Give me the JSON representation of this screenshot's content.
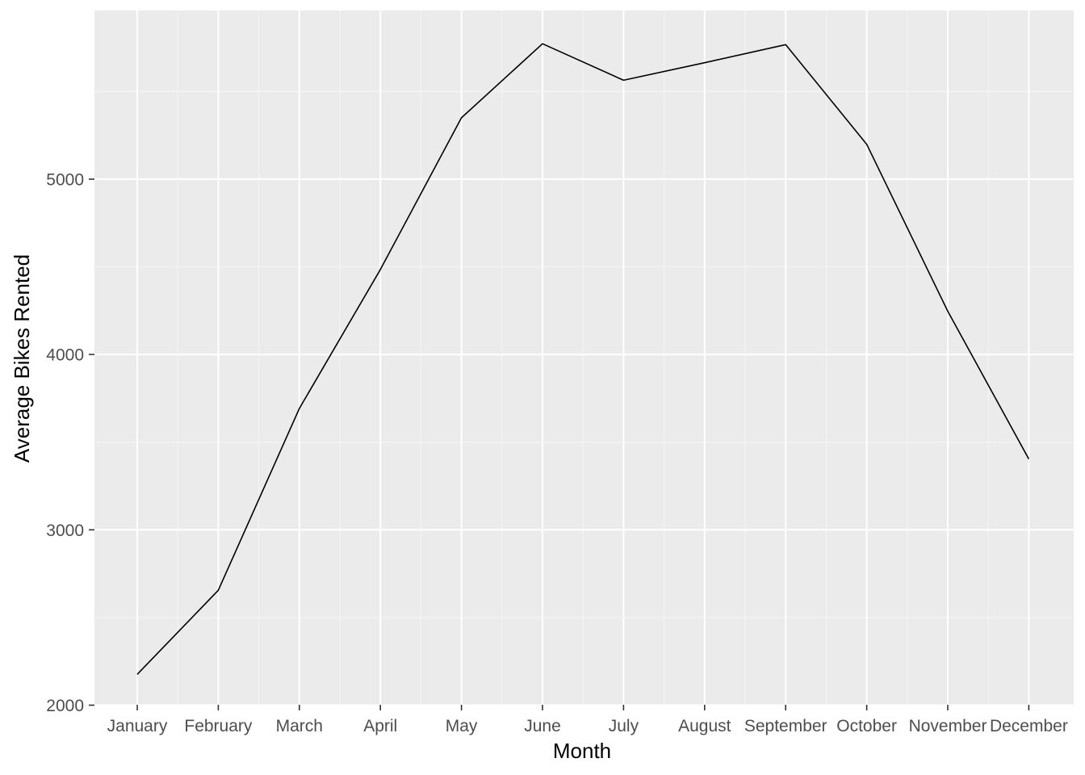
{
  "chart_data": {
    "type": "line",
    "title": "",
    "xlabel": "Month",
    "ylabel": "Average Bikes Rented",
    "categories": [
      "January",
      "February",
      "March",
      "April",
      "May",
      "June",
      "July",
      "August",
      "September",
      "October",
      "November",
      "December"
    ],
    "series": [
      {
        "values": [
          2176,
          2655,
          3692,
          4485,
          5350,
          5772,
          5564,
          5664,
          5767,
          5199,
          4247,
          3404
        ]
      }
    ],
    "ylim": [
      2000,
      5950
    ],
    "yticks": [
      2000,
      3000,
      4000,
      5000
    ],
    "ytick_labels": [
      "2000",
      "3000",
      "4000",
      "5000"
    ],
    "grid": true,
    "legend": "none",
    "colors": {
      "panel_background": "#ebebeb",
      "grid_major": "#ffffff",
      "grid_minor": "#f5f5f5",
      "line": "#000000",
      "tick_label": "#4d4d4d",
      "tick_mark": "#333333"
    }
  }
}
